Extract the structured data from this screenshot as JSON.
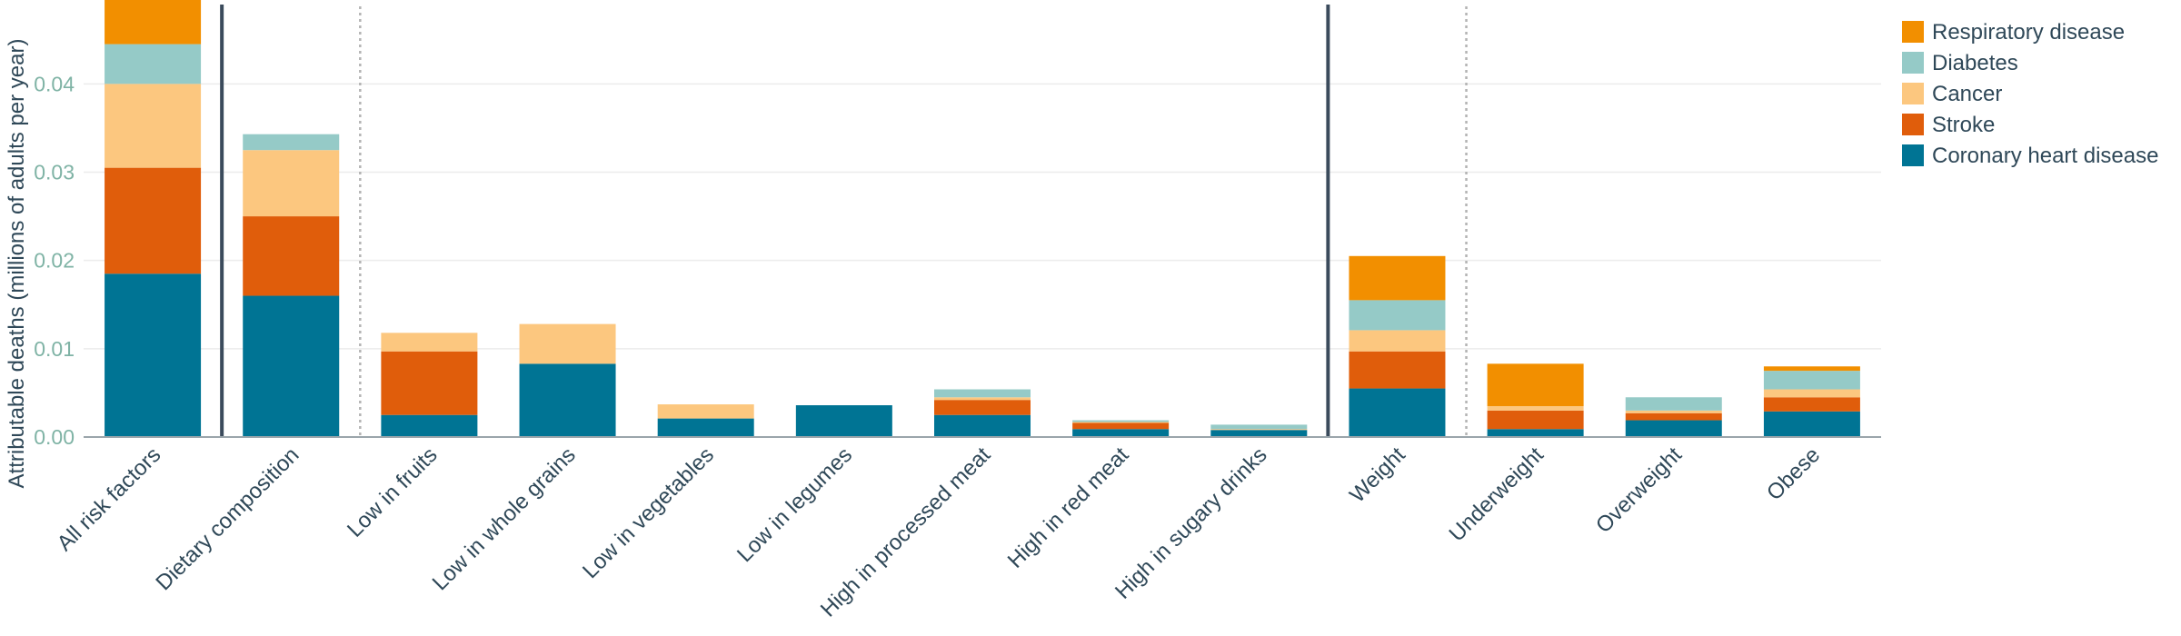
{
  "chart_data": {
    "type": "bar",
    "stacked": true,
    "ylabel": "Attributable deaths (millions of adults per year)",
    "xlabel": "",
    "ylim": [
      0,
      0.0495
    ],
    "yticks": [
      0.0,
      0.01,
      0.02,
      0.03,
      0.04
    ],
    "ytick_labels": [
      "0.00",
      "0.01",
      "0.02",
      "0.03",
      "0.04"
    ],
    "grid": true,
    "legend_position": "right",
    "categories": [
      "All risk factors",
      "Dietary composition",
      "Low in fruits",
      "Low in whole grains",
      "Low in vegetables",
      "Low in legumes",
      "High in processed meat",
      "High in red meat",
      "High in sugary drinks",
      "Weight",
      "Underweight",
      "Overweight",
      "Obese"
    ],
    "series": [
      {
        "name": "Coronary heart disease",
        "color": "#007494",
        "values": [
          0.0185,
          0.016,
          0.0025,
          0.0083,
          0.0021,
          0.0036,
          0.0025,
          0.0009,
          0.0008,
          0.0055,
          0.0009,
          0.0019,
          0.0029
        ]
      },
      {
        "name": "Stroke",
        "color": "#e05d0b",
        "values": [
          0.012,
          0.009,
          0.0072,
          0.0,
          0.0,
          0.0,
          0.0017,
          0.0007,
          0.0,
          0.0042,
          0.0021,
          0.0008,
          0.0016
        ]
      },
      {
        "name": "Cancer",
        "color": "#fcc77f",
        "values": [
          0.0095,
          0.0075,
          0.0021,
          0.0045,
          0.0016,
          0.0,
          0.0003,
          0.0001,
          0.0001,
          0.0024,
          0.0005,
          0.0003,
          0.0009
        ]
      },
      {
        "name": "Diabetes",
        "color": "#95cac7",
        "values": [
          0.0045,
          0.0018,
          0.0,
          0.0,
          0.0,
          0.0,
          0.0009,
          0.0002,
          0.0005,
          0.0034,
          0.0,
          0.0015,
          0.0021
        ]
      },
      {
        "name": "Respiratory disease",
        "color": "#f28f00",
        "values": [
          0.005,
          0.0,
          0.0,
          0.0,
          0.0,
          0.0,
          0.0,
          0.0,
          0.0,
          0.005,
          0.0048,
          0.0,
          0.0005
        ]
      }
    ],
    "legend_order": [
      "Respiratory disease",
      "Diabetes",
      "Cancer",
      "Stroke",
      "Coronary heart disease"
    ],
    "separators": [
      {
        "after_category_index": 0,
        "style": "solid"
      },
      {
        "after_category_index": 1,
        "style": "dotted"
      },
      {
        "after_category_index": 8,
        "style": "solid"
      },
      {
        "after_category_index": 9,
        "style": "dotted"
      }
    ]
  }
}
